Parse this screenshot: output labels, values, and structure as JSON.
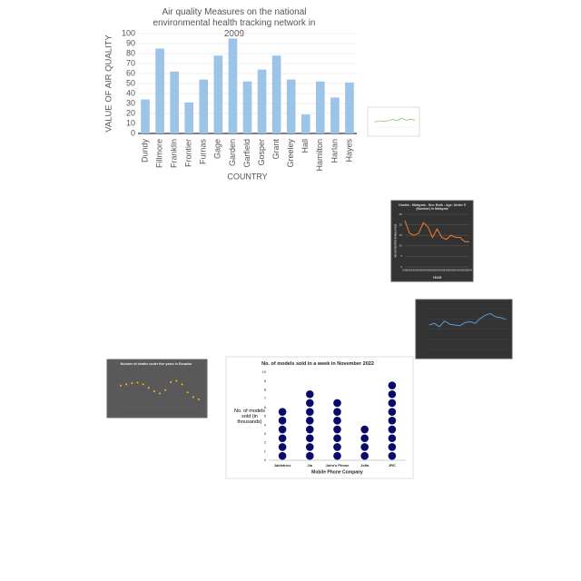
{
  "chart_data": [
    {
      "type": "bar",
      "title": "Air quality Measures on the national environmental health tracking network in 2009",
      "y_label": "VALUE OF AIR QUALITY",
      "x_label": "COUNTRY",
      "categories": [
        "Dundy",
        "Fillmore",
        "Franklin",
        "Frontier",
        "Furnas",
        "Gage",
        "Garden",
        "Garfield",
        "Gosper",
        "Grant",
        "Greeley",
        "Hall",
        "Hamilton",
        "Harlan",
        "Hayes"
      ],
      "values": [
        34,
        85,
        62,
        31,
        54,
        78,
        95,
        52,
        64,
        78,
        54,
        19,
        52,
        36,
        51
      ],
      "color": "#9dc3e6",
      "ylim": [
        0,
        100
      ],
      "yticks": [
        0,
        10,
        20,
        30,
        40,
        50,
        60,
        70,
        80,
        90,
        100
      ],
      "grid": true
    },
    {
      "type": "line",
      "values": [
        4,
        5,
        4.5,
        5,
        6,
        5,
        7,
        5.5,
        6,
        5.5
      ],
      "color": "#70ad47",
      "ylim": [
        0,
        10
      ]
    },
    {
      "type": "line",
      "title": "Deaths - Malaysia - Sex: Both - Age: Under 5 (Number) in Malaysia",
      "y_label": "NO OF DEATHS IN MALAYSIA",
      "x_label": "YEAR",
      "x": [
        1990,
        1991,
        1992,
        1993,
        1994,
        1995,
        1996,
        1997,
        1998,
        1999,
        2000,
        2001,
        2002,
        2003,
        2004
      ],
      "values": [
        22,
        16,
        15,
        16,
        21,
        19,
        14,
        18,
        14,
        13,
        15,
        14,
        14,
        12,
        12
      ],
      "color": "#ed7d31",
      "xlim": [
        1990,
        2004
      ],
      "ylim": [
        0,
        25
      ],
      "yticks": [
        0,
        5,
        10,
        15,
        20,
        25
      ],
      "grid": true
    },
    {
      "type": "line",
      "values": [
        30,
        32,
        28,
        35,
        31,
        30,
        29,
        33,
        34,
        32,
        38,
        42,
        44,
        40,
        39,
        37
      ],
      "color": "#5b9bd5",
      "ylim": [
        0,
        50
      ],
      "grid": true
    },
    {
      "type": "scatter",
      "title": "Number of deaths under five years in Ecuador",
      "values": [
        8,
        8.2,
        8.4,
        8.5,
        8.2,
        7.6,
        7,
        6.6,
        7.2,
        8.6,
        8.8,
        8.2,
        6.8,
        6,
        5.6
      ],
      "color": "#ffc000",
      "ylim": [
        4,
        10
      ]
    },
    {
      "type": "dot",
      "title": "No. of models sold in a week in November 2022",
      "y_label": "No. of models sold (in thousands)",
      "x_label": "Mobile Phone Company",
      "categories": [
        "Jabletrics",
        "Jio",
        "John's Phone",
        "Jolla",
        "JRC"
      ],
      "values": [
        6,
        8,
        7,
        4,
        9
      ],
      "color": "#0a0a6b",
      "ylim": [
        0,
        10
      ],
      "yticks": [
        0,
        1,
        2,
        3,
        4,
        5,
        6,
        7,
        8,
        9,
        10
      ]
    }
  ]
}
